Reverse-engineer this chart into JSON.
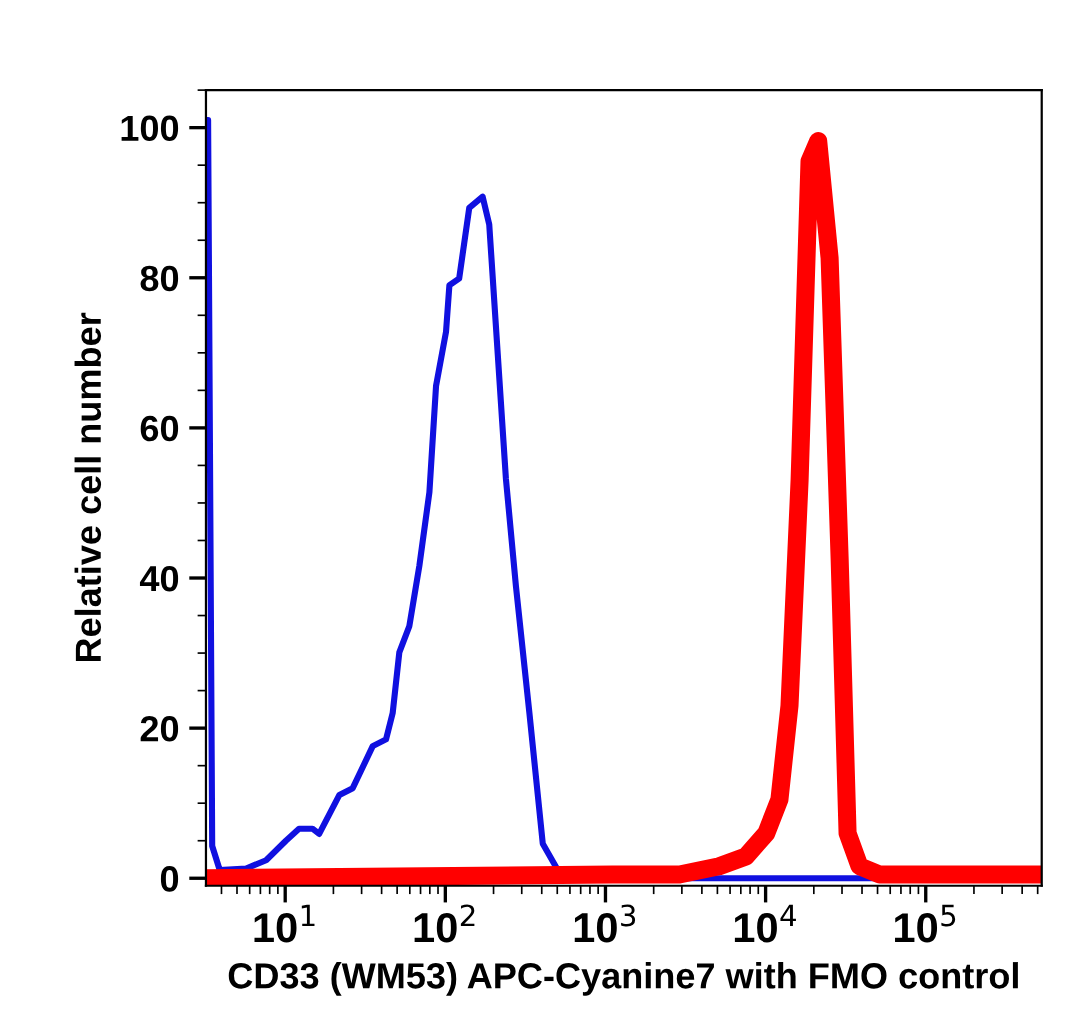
{
  "chart_data": {
    "type": "line",
    "xlabel": "CD33 (WM53) APC-Cyanine7 with FMO control",
    "ylabel": "Relative cell number",
    "log": "x",
    "xlim": [
      3.2,
      530000
    ],
    "ylim": [
      -1,
      105
    ],
    "xticks": [
      {
        "value": 10,
        "label": "10$^{1}$"
      },
      {
        "value": 100,
        "label": "10$^{2}$"
      },
      {
        "value": 1000,
        "label": "10$^{3}$"
      },
      {
        "value": 10000,
        "label": "10$^{4}$"
      },
      {
        "value": 100000,
        "label": "10$^{5}$"
      }
    ],
    "yticks": [
      0,
      20,
      40,
      60,
      80,
      100
    ],
    "grid": false,
    "legend": false,
    "marker": "none",
    "line_style": "solid",
    "series": [
      {
        "color": "#1010e0",
        "x": [
          3.2,
          3.3,
          3.5,
          3.9,
          5.7,
          7.6,
          10.1,
          12.2,
          14.8,
          16.3,
          21.8,
          26.4,
          35.2,
          42.6,
          46.9,
          51.6,
          59.6,
          68.8,
          79.5,
          87.5,
          101,
          106,
          122,
          141,
          171,
          188,
          239,
          276,
          335,
          406,
          516,
          832,
          530000
        ],
        "values": [
          101,
          101,
          4.3,
          1.1,
          1.3,
          2.4,
          5.0,
          6.6,
          6.6,
          5.9,
          11.1,
          12.0,
          17.6,
          18.5,
          22.0,
          30.1,
          33.6,
          41.6,
          51.4,
          65.6,
          72.8,
          79.0,
          79.9,
          89.3,
          90.8,
          87.1,
          53.2,
          38.9,
          22.0,
          4.6,
          0.7,
          0,
          0
        ]
      },
      {
        "color": "#ff0000",
        "x": [
          3.2,
          1110,
          2900,
          5130,
          7530,
          10100,
          12200,
          14100,
          16300,
          18800,
          21300,
          25100,
          29000,
          32500,
          38600,
          51500,
          530000
        ],
        "values": [
          0,
          0.5,
          0.5,
          1.6,
          2.9,
          6.0,
          10.5,
          23,
          53,
          95.5,
          98.2,
          82.6,
          42.5,
          6,
          1.6,
          0.5,
          0.5
        ]
      }
    ]
  }
}
